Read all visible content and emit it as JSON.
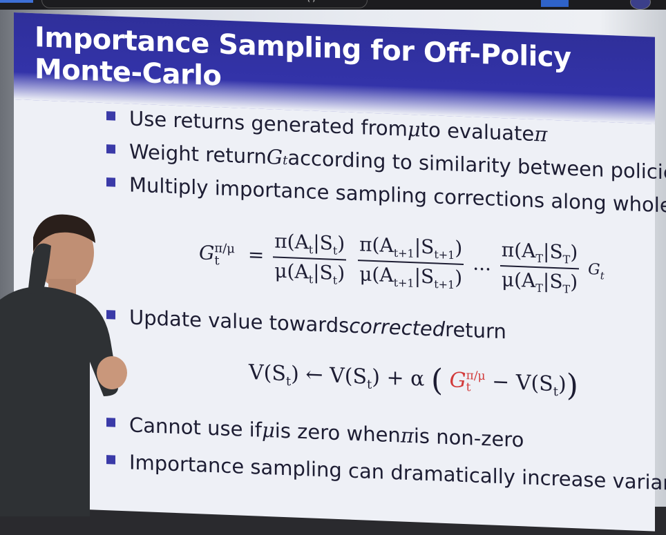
{
  "slide": {
    "title": "Importance Sampling for Off-Policy Monte-Carlo",
    "bullets_top": [
      {
        "text_a": "Use returns generated from ",
        "sym1": "μ",
        "text_b": " to evaluate ",
        "sym2": "π"
      },
      {
        "text_a": "Weight return ",
        "sym1": "G",
        "sub1": "t",
        "text_b": " according to similarity between policies"
      },
      {
        "text_a": "Multiply importance sampling corrections along whole episode"
      }
    ],
    "eq1": {
      "lhs": "G",
      "lhs_sup": "π/μ",
      "lhs_sub": "t",
      "f1_num": "π(A",
      "f1_num_sub": "t",
      "f1_num_mid": "|S",
      "f1_num_sub2": "t",
      "f1_num_end": ")",
      "f1_den": "μ(A",
      "f1_den_sub": "t",
      "f1_den_mid": "|S",
      "f1_den_sub2": "t",
      "f1_den_end": ")",
      "f2_num": "π(A",
      "f2_num_sub": "t+1",
      "f2_num_mid": "|S",
      "f2_num_sub2": "t+1",
      "f2_num_end": ")",
      "f2_den": "μ(A",
      "f2_den_sub": "t+1",
      "f2_den_mid": "|S",
      "f2_den_sub2": "t+1",
      "f2_den_end": ")",
      "dots": "...",
      "f3_num": "π(A",
      "f3_num_sub": "T",
      "f3_num_mid": "|S",
      "f3_num_sub2": "T",
      "f3_num_end": ")",
      "f3_den": "μ(A",
      "f3_den_sub": "T",
      "f3_den_mid": "|S",
      "f3_den_sub2": "T",
      "f3_den_end": ")",
      "tail": "G",
      "tail_sub": "t"
    },
    "bullet_mid": {
      "text_a": "Update value towards ",
      "italic": "corrected",
      "text_b": " return"
    },
    "eq2": {
      "part1": "V(S",
      "s1": "t",
      "part2": ") ← V(S",
      "s2": "t",
      "part3": ") + α ",
      "lparen": "(",
      "g": "G",
      "g_sup": "π/μ",
      "g_sub": "t",
      "part4": " − V(S",
      "s3": "t",
      "part5": ")",
      "rparen": ")"
    },
    "bullets_bottom": [
      {
        "text_a": "Cannot use if ",
        "sym1": "μ",
        "text_b": " is zero when ",
        "sym2": "π",
        "text_c": " is non-zero"
      },
      {
        "text_a": "Importance sampling can dramatically increase variance"
      }
    ]
  },
  "colors": {
    "title_bar": "#3535b0",
    "bullet": "#3a3aa8",
    "highlight": "#d23a3a"
  }
}
